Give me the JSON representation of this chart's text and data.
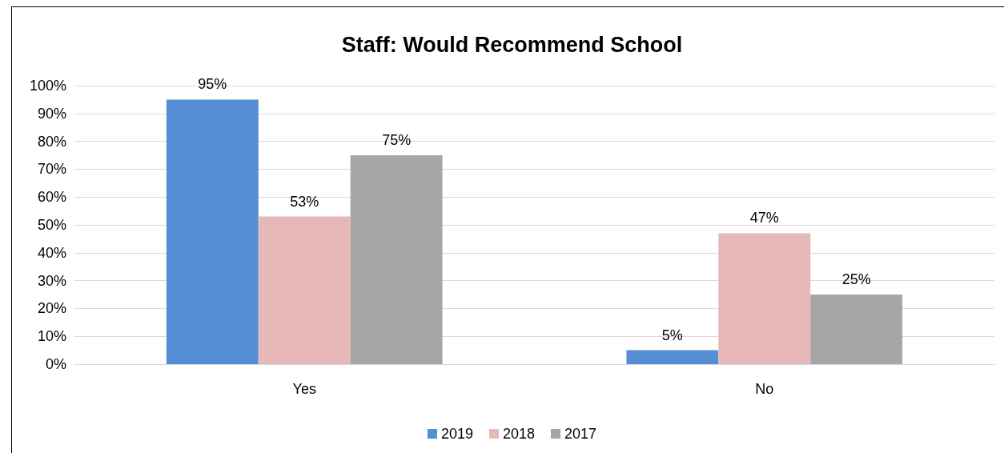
{
  "chart_data": {
    "type": "bar",
    "title": "Staff: Would Recommend School",
    "categories": [
      "Yes",
      "No"
    ],
    "series": [
      {
        "name": "2019",
        "color": "#558ed5",
        "values": [
          95,
          5
        ],
        "value_labels": [
          "95%",
          "5%"
        ]
      },
      {
        "name": "2018",
        "color": "#e6b9b8",
        "values": [
          53,
          47
        ],
        "value_labels": [
          "53%",
          "47%"
        ]
      },
      {
        "name": "2017",
        "color": "#a6a6a6",
        "values": [
          75,
          25
        ],
        "value_labels": [
          "75%",
          "25%"
        ]
      }
    ],
    "ylim": [
      0,
      100
    ],
    "yticks": [
      {
        "value": 0,
        "label": "0%"
      },
      {
        "value": 10,
        "label": "10%"
      },
      {
        "value": 20,
        "label": "20%"
      },
      {
        "value": 30,
        "label": "30%"
      },
      {
        "value": 40,
        "label": "40%"
      },
      {
        "value": 50,
        "label": "50%"
      },
      {
        "value": 60,
        "label": "60%"
      },
      {
        "value": 70,
        "label": "70%"
      },
      {
        "value": 80,
        "label": "80%"
      },
      {
        "value": 90,
        "label": "90%"
      },
      {
        "value": 100,
        "label": "100%"
      }
    ],
    "grid": "y",
    "legend": "bottom"
  }
}
